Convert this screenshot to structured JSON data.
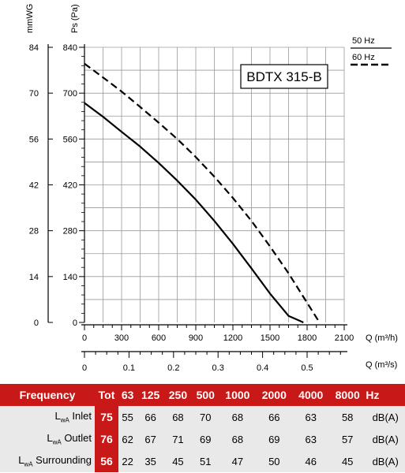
{
  "chart_data": {
    "type": "line",
    "title": "BDTX 315-B",
    "left_axis_label": "Ps (Pa)",
    "far_left_axis_label": "mmWG",
    "xlabel": "Q (m³/h)",
    "x2label": "Q (m³/s)",
    "xlim": [
      0,
      2100
    ],
    "ylim": [
      0,
      840
    ],
    "x_ticks": [
      "0",
      "300",
      "600",
      "900",
      "1200",
      "1500",
      "1800",
      "2100"
    ],
    "x2_ticks": [
      "0",
      "0.1",
      "0.2",
      "0.3",
      "0.4",
      "0.5"
    ],
    "y_ticks": [
      "0",
      "140",
      "280",
      "420",
      "560",
      "700",
      "840"
    ],
    "y2_ticks": [
      "0",
      "14",
      "28",
      "42",
      "56",
      "70",
      "84"
    ],
    "grid": true,
    "legend": [
      {
        "label": "50 Hz",
        "style": "solid"
      },
      {
        "label": "60 Hz",
        "style": "dashed"
      }
    ],
    "series": [
      {
        "name": "50 Hz",
        "style": "solid",
        "x": [
          0,
          150,
          300,
          450,
          600,
          750,
          900,
          1050,
          1200,
          1350,
          1500,
          1650,
          1770
        ],
        "y": [
          670,
          628,
          582,
          537,
          487,
          433,
          375,
          310,
          240,
          165,
          88,
          20,
          0
        ]
      },
      {
        "name": "60 Hz",
        "style": "dashed",
        "x": [
          0,
          150,
          300,
          450,
          600,
          750,
          900,
          1050,
          1200,
          1350,
          1500,
          1650,
          1800,
          1900
        ],
        "y": [
          790,
          748,
          705,
          658,
          610,
          560,
          505,
          445,
          380,
          310,
          232,
          150,
          60,
          0
        ]
      }
    ]
  },
  "table": {
    "header": [
      "Frequency",
      "Tot",
      "63",
      "125",
      "250",
      "500",
      "1000",
      "2000",
      "4000",
      "8000",
      "Hz"
    ],
    "rows": [
      {
        "label_main": "L",
        "label_sub": "wA",
        "label_rest": " Inlet",
        "tot": "75",
        "values": [
          "55",
          "66",
          "68",
          "70",
          "68",
          "66",
          "63",
          "58"
        ],
        "unit": "dB(A)"
      },
      {
        "label_main": "L",
        "label_sub": "wA",
        "label_rest": " Outlet",
        "tot": "76",
        "values": [
          "62",
          "67",
          "71",
          "69",
          "68",
          "69",
          "63",
          "57"
        ],
        "unit": "dB(A)"
      },
      {
        "label_main": "L",
        "label_sub": "wA",
        "label_rest": " Surrounding",
        "tot": "56",
        "values": [
          "22",
          "35",
          "45",
          "51",
          "47",
          "50",
          "46",
          "45"
        ],
        "unit": "dB(A)"
      }
    ]
  }
}
